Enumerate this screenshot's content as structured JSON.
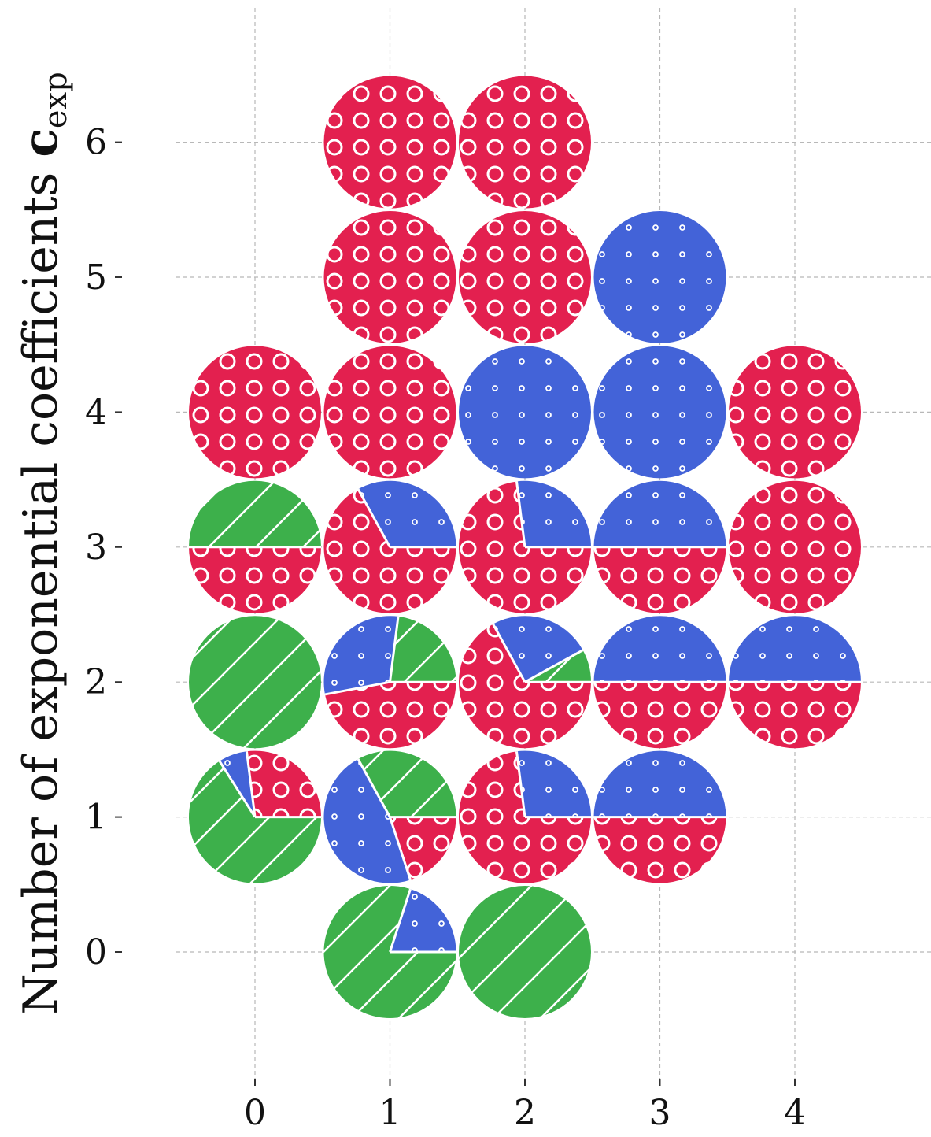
{
  "chart_data": {
    "type": "pie-grid",
    "title": "",
    "xlabel": "",
    "ylabel": {
      "text": "Number of exponential coefficients ",
      "symbol": "c",
      "subscript": "exp"
    },
    "xlim": [
      -0.95,
      4.95
    ],
    "ylim": [
      -0.95,
      6.95
    ],
    "xticks": [
      0,
      1,
      2,
      3,
      4
    ],
    "yticks": [
      0,
      1,
      2,
      3,
      4,
      5,
      6
    ],
    "grid": true,
    "categories": [
      {
        "key": "red",
        "color": "#E3204F",
        "pattern": "circles"
      },
      {
        "key": "blue",
        "color": "#4363D8",
        "pattern": "small-dots"
      },
      {
        "key": "green",
        "color": "#3DB04B",
        "pattern": "diagonal-lines"
      }
    ],
    "pies": [
      {
        "x": 1,
        "y": 6,
        "fractions": {
          "red": 1.0,
          "blue": 0.0,
          "green": 0.0
        }
      },
      {
        "x": 2,
        "y": 6,
        "fractions": {
          "red": 1.0,
          "blue": 0.0,
          "green": 0.0
        }
      },
      {
        "x": 1,
        "y": 5,
        "fractions": {
          "red": 1.0,
          "blue": 0.0,
          "green": 0.0
        }
      },
      {
        "x": 2,
        "y": 5,
        "fractions": {
          "red": 1.0,
          "blue": 0.0,
          "green": 0.0
        }
      },
      {
        "x": 3,
        "y": 5,
        "fractions": {
          "red": 0.0,
          "blue": 1.0,
          "green": 0.0
        }
      },
      {
        "x": 0,
        "y": 4,
        "fractions": {
          "red": 1.0,
          "blue": 0.0,
          "green": 0.0
        }
      },
      {
        "x": 1,
        "y": 4,
        "fractions": {
          "red": 1.0,
          "blue": 0.0,
          "green": 0.0
        }
      },
      {
        "x": 2,
        "y": 4,
        "fractions": {
          "red": 0.0,
          "blue": 1.0,
          "green": 0.0
        }
      },
      {
        "x": 3,
        "y": 4,
        "fractions": {
          "red": 0.0,
          "blue": 1.0,
          "green": 0.0
        }
      },
      {
        "x": 4,
        "y": 4,
        "fractions": {
          "red": 1.0,
          "blue": 0.0,
          "green": 0.0
        }
      },
      {
        "x": 0,
        "y": 3,
        "fractions": {
          "green": 0.5,
          "red": 0.5,
          "blue": 0.0
        }
      },
      {
        "x": 1,
        "y": 3,
        "fractions": {
          "blue": 0.33,
          "red": 0.67,
          "green": 0.0
        }
      },
      {
        "x": 2,
        "y": 3,
        "fractions": {
          "blue": 0.27,
          "red": 0.73,
          "green": 0.0
        }
      },
      {
        "x": 3,
        "y": 3,
        "fractions": {
          "blue": 0.5,
          "red": 0.5,
          "green": 0.0
        }
      },
      {
        "x": 4,
        "y": 3,
        "fractions": {
          "red": 1.0,
          "blue": 0.0,
          "green": 0.0
        }
      },
      {
        "x": 0,
        "y": 2,
        "fractions": {
          "green": 1.0,
          "red": 0.0,
          "blue": 0.0
        }
      },
      {
        "x": 1,
        "y": 2,
        "fractions": {
          "green": 0.23,
          "blue": 0.3,
          "red": 0.47
        }
      },
      {
        "x": 2,
        "y": 2,
        "fractions": {
          "green": 0.08,
          "blue": 0.25,
          "red": 0.67
        }
      },
      {
        "x": 3,
        "y": 2,
        "fractions": {
          "blue": 0.5,
          "red": 0.5,
          "green": 0.0
        }
      },
      {
        "x": 4,
        "y": 2,
        "fractions": {
          "blue": 0.5,
          "red": 0.5,
          "green": 0.0
        }
      },
      {
        "x": 0,
        "y": 1,
        "fractions": {
          "red": 0.27,
          "blue": 0.07,
          "green": 0.66
        }
      },
      {
        "x": 1,
        "y": 1,
        "fractions": {
          "green": 0.33,
          "blue": 0.47,
          "red": 0.2
        }
      },
      {
        "x": 2,
        "y": 1,
        "fractions": {
          "blue": 0.27,
          "red": 0.73,
          "green": 0.0
        }
      },
      {
        "x": 3,
        "y": 1,
        "fractions": {
          "blue": 0.5,
          "red": 0.5,
          "green": 0.0
        }
      },
      {
        "x": 1,
        "y": 0,
        "fractions": {
          "blue": 0.2,
          "green": 0.8,
          "red": 0.0
        }
      },
      {
        "x": 2,
        "y": 0,
        "fractions": {
          "green": 1.0,
          "red": 0.0,
          "blue": 0.0
        }
      }
    ]
  }
}
